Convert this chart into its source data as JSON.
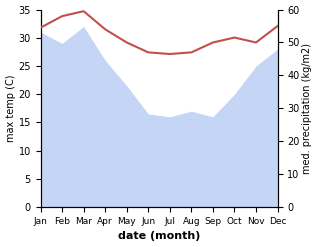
{
  "months": [
    "Jan",
    "Feb",
    "Mar",
    "Apr",
    "May",
    "Jun",
    "Jul",
    "Aug",
    "Sep",
    "Oct",
    "Nov",
    "Dec"
  ],
  "max_temp": [
    31.0,
    29.0,
    32.0,
    26.0,
    21.5,
    16.5,
    16.0,
    17.0,
    16.0,
    20.0,
    25.0,
    28.0
  ],
  "precipitation": [
    54.5,
    58.0,
    59.5,
    54.0,
    50.0,
    47.0,
    46.5,
    47.0,
    50.0,
    51.5,
    50.0,
    55.0
  ],
  "temp_color": "#c0504d",
  "precip_fill_color": "#c5d5f5",
  "temp_ylim": [
    0,
    35
  ],
  "precip_ylim": [
    0,
    60
  ],
  "xlabel": "date (month)",
  "ylabel_left": "max temp (C)",
  "ylabel_right": "med. precipitation (kg/m2)",
  "temp_yticks": [
    0,
    5,
    10,
    15,
    20,
    25,
    30,
    35
  ],
  "precip_yticks": [
    0,
    10,
    20,
    30,
    40,
    50,
    60
  ],
  "background_color": "#ffffff"
}
